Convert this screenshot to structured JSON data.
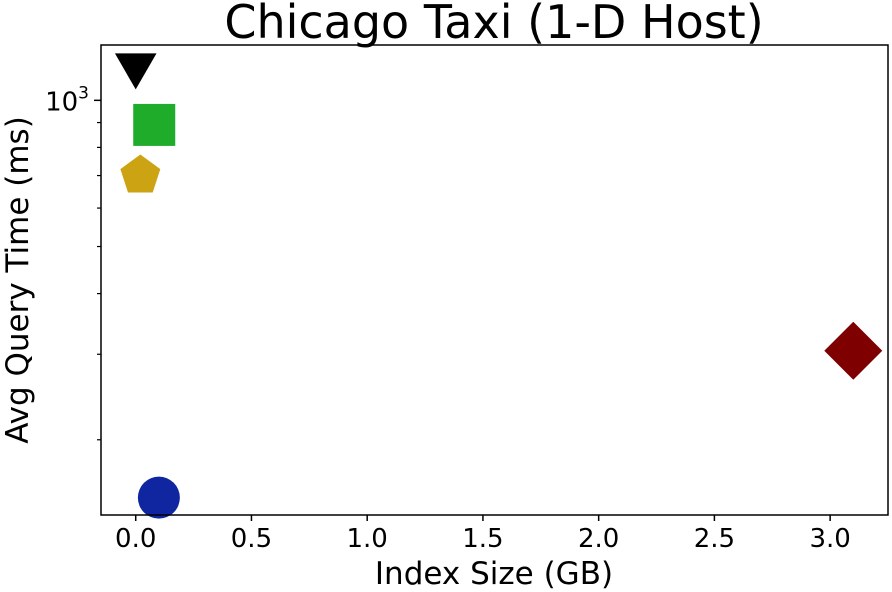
{
  "chart_data": {
    "type": "scatter",
    "title": "Chicago Taxi (1-D Host)",
    "xlabel": "Index Size (GB)",
    "ylabel": "Avg Query Time (ms)",
    "x_scale": "linear",
    "y_scale": "log",
    "xlim": [
      -0.15,
      3.25
    ],
    "ylim": [
      140,
      1300
    ],
    "x_ticks": [
      0.0,
      0.5,
      1.0,
      1.5,
      2.0,
      2.5,
      3.0
    ],
    "x_tick_labels": [
      "0.0",
      "0.5",
      "1.0",
      "1.5",
      "2.0",
      "2.5",
      "3.0"
    ],
    "y_major_ticks": [
      1000
    ],
    "y_major_tick_base": "10",
    "y_major_tick_exponent": "3",
    "y_minor_ticks": [
      200,
      300,
      400,
      500,
      600,
      700,
      800,
      900
    ],
    "grid": false,
    "legend": "none",
    "points": [
      {
        "x": 0.0,
        "y": 1180,
        "marker": "triangle-down",
        "color": "#000000"
      },
      {
        "x": 0.08,
        "y": 890,
        "marker": "square",
        "color": "#1fac2b"
      },
      {
        "x": 0.02,
        "y": 700,
        "marker": "pentagon",
        "color": "#cca313"
      },
      {
        "x": 3.1,
        "y": 305,
        "marker": "diamond",
        "color": "#7f0000"
      },
      {
        "x": 0.1,
        "y": 152,
        "marker": "circle",
        "color": "#0f26a0"
      }
    ]
  }
}
